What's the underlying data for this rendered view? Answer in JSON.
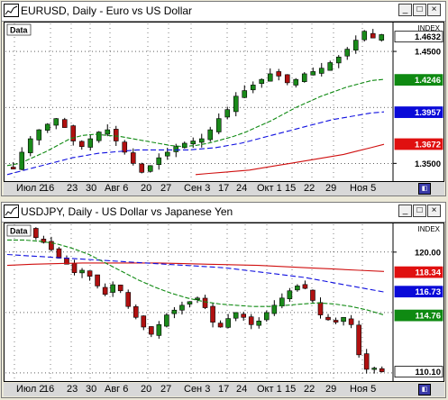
{
  "windows": [
    {
      "title": "EURUSD, Daily - Euro vs US Dollar",
      "data_label": "Data",
      "index_label": "INDEX",
      "price_labels": [
        {
          "text": "1.4632",
          "value": 1.4632,
          "bg": "#ffffff",
          "fg": "#000000"
        },
        {
          "text": "1.4500",
          "value": 1.45,
          "bg": "none",
          "fg": "#000000"
        },
        {
          "text": "1.4246",
          "value": 1.4246,
          "bg": "#0f8a12",
          "fg": "#ffffff"
        },
        {
          "text": "1.3957",
          "value": 1.3957,
          "bg": "#0a0ad8",
          "fg": "#ffffff"
        },
        {
          "text": "1.3672",
          "value": 1.3672,
          "bg": "#e01010",
          "fg": "#ffffff"
        },
        {
          "text": "1.3500",
          "value": 1.35,
          "bg": "none",
          "fg": "#000000"
        }
      ],
      "x_labels": [
        "Июл 2",
        "16",
        "23",
        "30",
        "Авг 6",
        "20",
        "27",
        "Сен 3",
        "17",
        "24",
        "Окт 1",
        "15",
        "22",
        "29",
        "Ноя 5"
      ]
    },
    {
      "title": "USDJPY, Daily - US Dollar vs Japanese Yen",
      "data_label": "Data",
      "index_label": "INDEX",
      "price_labels": [
        {
          "text": "120.00",
          "value": 120.0,
          "bg": "none",
          "fg": "#000000"
        },
        {
          "text": "118.34",
          "value": 118.34,
          "bg": "#e01010",
          "fg": "#ffffff"
        },
        {
          "text": "116.73",
          "value": 116.73,
          "bg": "#0a0ad8",
          "fg": "#ffffff"
        },
        {
          "text": "114.76",
          "value": 114.76,
          "bg": "#0f8a12",
          "fg": "#ffffff"
        },
        {
          "text": "110.10",
          "value": 110.1,
          "bg": "#ffffff",
          "fg": "#000000"
        }
      ],
      "x_labels": [
        "Июл 2",
        "16",
        "23",
        "30",
        "Авг 6",
        "20",
        "27",
        "Сен 3",
        "17",
        "24",
        "Окт 1",
        "15",
        "22",
        "29",
        "Ноя 5"
      ]
    }
  ],
  "colors": {
    "bull": "#1a8a1a",
    "bear": "#b01010",
    "ma_fast": "#0f8a12",
    "ma_mid": "#1010e0",
    "ma_slow": "#d01010"
  },
  "icons": {
    "window": "chart-window-icon",
    "badge": "indicator-badge-icon"
  }
}
